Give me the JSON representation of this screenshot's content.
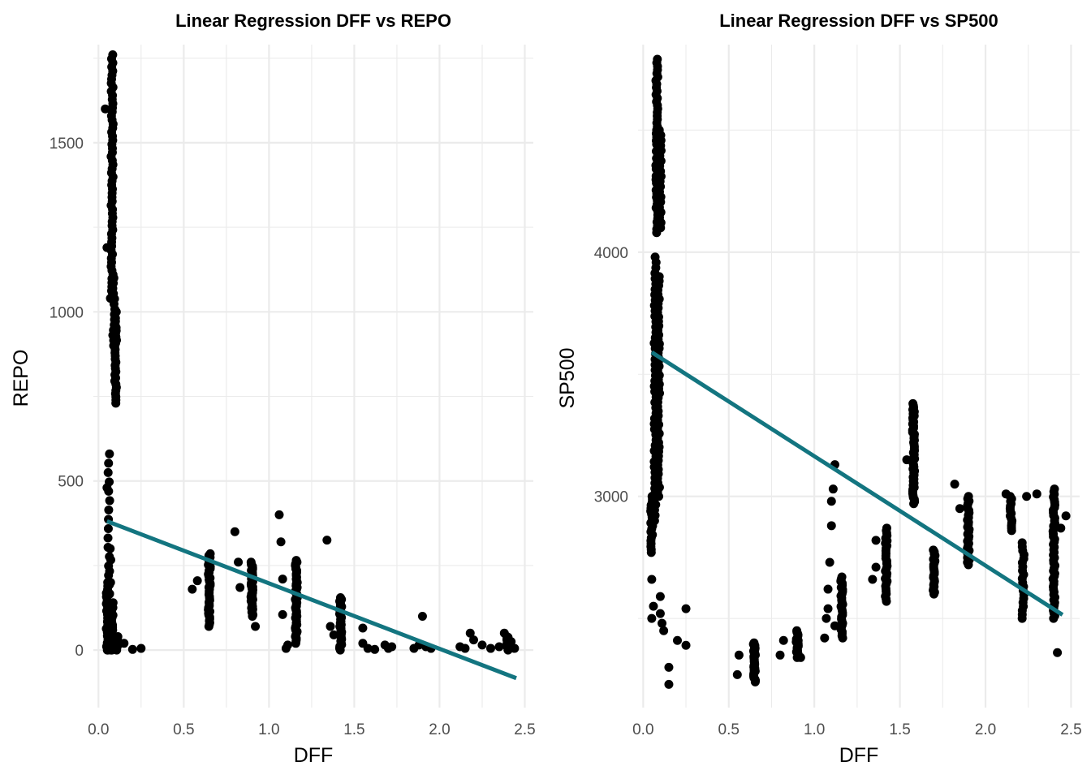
{
  "chart_data": [
    {
      "type": "scatter",
      "title": "Linear Regression DFF vs REPO",
      "xlabel": "DFF",
      "ylabel": "REPO",
      "xlim": [
        -0.03,
        2.55
      ],
      "ylim": [
        -170,
        1790
      ],
      "xticks": [
        0.0,
        0.5,
        1.0,
        1.5,
        2.0,
        2.5
      ],
      "xtick_labels": [
        "0.0",
        "0.5",
        "1.0",
        "1.5",
        "2.0",
        "2.5"
      ],
      "yticks": [
        0,
        500,
        1000,
        1500
      ],
      "ytick_labels": [
        "0",
        "500",
        "1000",
        "1500"
      ],
      "grid": true,
      "point_color": "#000000",
      "line_color": "#137580",
      "regression_line": {
        "x": [
          0.05,
          2.45
        ],
        "y": [
          381,
          -83
        ]
      },
      "clusters": [
        {
          "x": 0.05,
          "y_min": 0,
          "y_max": 200,
          "n": 20
        },
        {
          "x": 0.06,
          "y_min": 0,
          "y_max": 580,
          "n": 22
        },
        {
          "x": 0.07,
          "y_min": 0,
          "y_max": 300,
          "n": 10
        },
        {
          "x": 0.08,
          "y_min": 1050,
          "y_max": 1760,
          "n": 60
        },
        {
          "x": 0.09,
          "y_min": 900,
          "y_max": 1100,
          "n": 14
        },
        {
          "x": 0.1,
          "y_min": 730,
          "y_max": 1000,
          "n": 30
        },
        {
          "x": 0.08,
          "y_min": 0,
          "y_max": 140,
          "n": 20
        },
        {
          "x": 0.11,
          "y_min": 0,
          "y_max": 40,
          "n": 8
        },
        {
          "x": 0.65,
          "y_min": 70,
          "y_max": 285,
          "n": 40
        },
        {
          "x": 0.9,
          "y_min": 100,
          "y_max": 260,
          "n": 40
        },
        {
          "x": 1.16,
          "y_min": 20,
          "y_max": 265,
          "n": 50
        },
        {
          "x": 1.42,
          "y_min": 0,
          "y_max": 155,
          "n": 30
        },
        {
          "x": 2.4,
          "y_min": 0,
          "y_max": 40,
          "n": 20
        }
      ],
      "points": [
        {
          "x": 0.04,
          "y": 1600
        },
        {
          "x": 0.05,
          "y": 1190
        },
        {
          "x": 0.05,
          "y": 480
        },
        {
          "x": 0.07,
          "y": 1040
        },
        {
          "x": 0.15,
          "y": 20
        },
        {
          "x": 0.2,
          "y": 2
        },
        {
          "x": 0.25,
          "y": 5
        },
        {
          "x": 0.55,
          "y": 180
        },
        {
          "x": 0.58,
          "y": 205
        },
        {
          "x": 0.8,
          "y": 350
        },
        {
          "x": 0.82,
          "y": 260
        },
        {
          "x": 0.83,
          "y": 185
        },
        {
          "x": 0.92,
          "y": 70
        },
        {
          "x": 1.06,
          "y": 400
        },
        {
          "x": 1.07,
          "y": 320
        },
        {
          "x": 1.08,
          "y": 105
        },
        {
          "x": 1.08,
          "y": 210
        },
        {
          "x": 1.1,
          "y": 5
        },
        {
          "x": 1.11,
          "y": 15
        },
        {
          "x": 1.34,
          "y": 325
        },
        {
          "x": 1.36,
          "y": 70
        },
        {
          "x": 1.38,
          "y": 45
        },
        {
          "x": 1.55,
          "y": 65
        },
        {
          "x": 1.55,
          "y": 20
        },
        {
          "x": 1.58,
          "y": 5
        },
        {
          "x": 1.62,
          "y": 2
        },
        {
          "x": 1.68,
          "y": 15
        },
        {
          "x": 1.7,
          "y": 5
        },
        {
          "x": 1.72,
          "y": 10
        },
        {
          "x": 1.85,
          "y": 5
        },
        {
          "x": 1.88,
          "y": 15
        },
        {
          "x": 1.9,
          "y": 100
        },
        {
          "x": 1.92,
          "y": 10
        },
        {
          "x": 1.95,
          "y": 5
        },
        {
          "x": 2.12,
          "y": 10
        },
        {
          "x": 2.15,
          "y": 5
        },
        {
          "x": 2.18,
          "y": 50
        },
        {
          "x": 2.2,
          "y": 30
        },
        {
          "x": 2.25,
          "y": 15
        },
        {
          "x": 2.3,
          "y": 5
        },
        {
          "x": 2.35,
          "y": 10
        },
        {
          "x": 2.38,
          "y": 50
        },
        {
          "x": 2.42,
          "y": 25
        },
        {
          "x": 2.44,
          "y": 5
        }
      ]
    },
    {
      "type": "scatter",
      "title": "Linear Regression DFF vs SP500",
      "xlabel": "DFF",
      "ylabel": "SP500",
      "xlim": [
        -0.03,
        2.55
      ],
      "ylim": [
        2135,
        4850
      ],
      "xticks": [
        0.0,
        0.5,
        1.0,
        1.5,
        2.0,
        2.5
      ],
      "xtick_labels": [
        "0.0",
        "0.5",
        "1.0",
        "1.5",
        "2.0",
        "2.5"
      ],
      "yticks": [
        3000,
        4000
      ],
      "ytick_labels": [
        "3000",
        "4000"
      ],
      "grid": true,
      "point_color": "#000000",
      "line_color": "#137580",
      "regression_line": {
        "x": [
          0.05,
          2.45
        ],
        "y": [
          3590,
          2515
        ]
      },
      "clusters": [
        {
          "x": 0.05,
          "y_min": 2770,
          "y_max": 3000,
          "n": 20
        },
        {
          "x": 0.07,
          "y_min": 2900,
          "y_max": 3980,
          "n": 50
        },
        {
          "x": 0.08,
          "y_min": 4080,
          "y_max": 4790,
          "n": 50
        },
        {
          "x": 0.09,
          "y_min": 3000,
          "y_max": 3900,
          "n": 50
        },
        {
          "x": 0.1,
          "y_min": 4100,
          "y_max": 4500,
          "n": 20
        },
        {
          "x": 0.65,
          "y_min": 2240,
          "y_max": 2400,
          "n": 30
        },
        {
          "x": 0.9,
          "y_min": 2340,
          "y_max": 2450,
          "n": 20
        },
        {
          "x": 1.16,
          "y_min": 2420,
          "y_max": 2670,
          "n": 30
        },
        {
          "x": 1.42,
          "y_min": 2570,
          "y_max": 2870,
          "n": 30
        },
        {
          "x": 1.58,
          "y_min": 2970,
          "y_max": 3380,
          "n": 50
        },
        {
          "x": 1.7,
          "y_min": 2600,
          "y_max": 2780,
          "n": 25
        },
        {
          "x": 1.9,
          "y_min": 2720,
          "y_max": 3000,
          "n": 30
        },
        {
          "x": 2.15,
          "y_min": 2860,
          "y_max": 3000,
          "n": 15
        },
        {
          "x": 2.22,
          "y_min": 2500,
          "y_max": 2810,
          "n": 20
        },
        {
          "x": 2.4,
          "y_min": 2500,
          "y_max": 3030,
          "n": 50
        }
      ],
      "points": [
        {
          "x": 0.05,
          "y": 2500
        },
        {
          "x": 0.05,
          "y": 2660
        },
        {
          "x": 0.06,
          "y": 2550
        },
        {
          "x": 0.1,
          "y": 2590
        },
        {
          "x": 0.11,
          "y": 2480
        },
        {
          "x": 0.12,
          "y": 2450
        },
        {
          "x": 0.1,
          "y": 2520
        },
        {
          "x": 0.15,
          "y": 2300
        },
        {
          "x": 0.15,
          "y": 2230
        },
        {
          "x": 0.2,
          "y": 2410
        },
        {
          "x": 0.25,
          "y": 2390
        },
        {
          "x": 0.25,
          "y": 2540
        },
        {
          "x": 0.55,
          "y": 2270
        },
        {
          "x": 0.56,
          "y": 2350
        },
        {
          "x": 0.8,
          "y": 2350
        },
        {
          "x": 0.82,
          "y": 2410
        },
        {
          "x": 0.92,
          "y": 2340
        },
        {
          "x": 1.06,
          "y": 2420
        },
        {
          "x": 1.07,
          "y": 2500
        },
        {
          "x": 1.08,
          "y": 2540
        },
        {
          "x": 1.08,
          "y": 2620
        },
        {
          "x": 1.09,
          "y": 2730
        },
        {
          "x": 1.1,
          "y": 2880
        },
        {
          "x": 1.1,
          "y": 2980
        },
        {
          "x": 1.11,
          "y": 3030
        },
        {
          "x": 1.12,
          "y": 3130
        },
        {
          "x": 1.12,
          "y": 2470
        },
        {
          "x": 1.34,
          "y": 2660
        },
        {
          "x": 1.36,
          "y": 2710
        },
        {
          "x": 1.36,
          "y": 2820
        },
        {
          "x": 1.54,
          "y": 3150
        },
        {
          "x": 1.82,
          "y": 3050
        },
        {
          "x": 1.85,
          "y": 2950
        },
        {
          "x": 2.12,
          "y": 3010
        },
        {
          "x": 2.24,
          "y": 3000
        },
        {
          "x": 2.3,
          "y": 3010
        },
        {
          "x": 2.44,
          "y": 2870
        },
        {
          "x": 2.47,
          "y": 2920
        },
        {
          "x": 2.42,
          "y": 2360
        }
      ]
    }
  ]
}
